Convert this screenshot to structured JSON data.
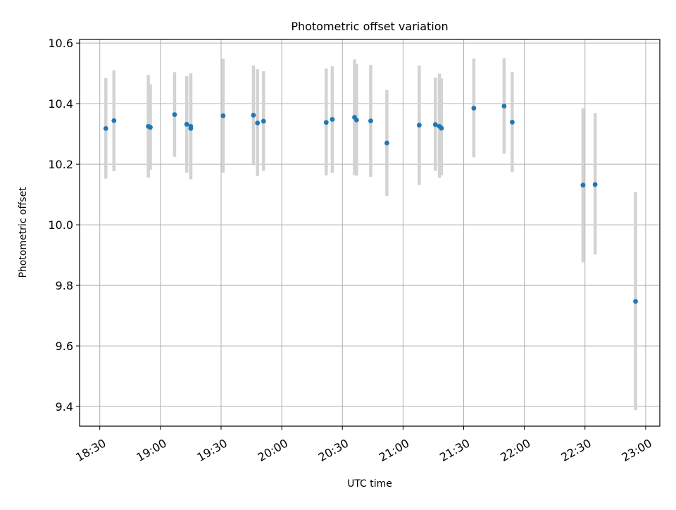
{
  "chart_data": {
    "type": "scatter",
    "title": "Photometric offset variation",
    "xlabel": "UTC time",
    "ylabel": "Photometric offset",
    "x_ticks": [
      "18:30",
      "19:00",
      "19:30",
      "20:00",
      "20:30",
      "21:00",
      "21:30",
      "22:00",
      "22:30",
      "23:00"
    ],
    "y_ticks": [
      "9.4",
      "9.6",
      "9.8",
      "10.0",
      "10.2",
      "10.4",
      "10.6"
    ],
    "xlim": [
      "18:20",
      "23:07"
    ],
    "ylim": [
      9.335,
      10.612
    ],
    "grid": true,
    "legend": "none",
    "colors": {
      "point": "#1f77b4",
      "errorbar": "#d3d3d3",
      "grid": "#b0b0b0"
    },
    "series": [
      {
        "points": [
          {
            "x": "18:33",
            "y": 10.318,
            "ylo": 10.152,
            "yhi": 10.484
          },
          {
            "x": "18:37",
            "y": 10.344,
            "ylo": 10.177,
            "yhi": 10.51
          },
          {
            "x": "18:54",
            "y": 10.325,
            "ylo": 10.156,
            "yhi": 10.495
          },
          {
            "x": "18:55",
            "y": 10.322,
            "ylo": 10.181,
            "yhi": 10.464
          },
          {
            "x": "19:07",
            "y": 10.364,
            "ylo": 10.224,
            "yhi": 10.504
          },
          {
            "x": "19:13",
            "y": 10.332,
            "ylo": 10.172,
            "yhi": 10.491
          },
          {
            "x": "19:15",
            "y": 10.325,
            "ylo": 10.153,
            "yhi": 10.5
          },
          {
            "x": "19:15",
            "y": 10.318,
            "ylo": 10.15,
            "yhi": 10.486
          },
          {
            "x": "19:31",
            "y": 10.36,
            "ylo": 10.172,
            "yhi": 10.548
          },
          {
            "x": "19:46",
            "y": 10.362,
            "ylo": 10.197,
            "yhi": 10.526
          },
          {
            "x": "19:48",
            "y": 10.336,
            "ylo": 10.161,
            "yhi": 10.514
          },
          {
            "x": "19:51",
            "y": 10.342,
            "ylo": 10.178,
            "yhi": 10.507
          },
          {
            "x": "20:22",
            "y": 10.338,
            "ylo": 10.163,
            "yhi": 10.516
          },
          {
            "x": "20:25",
            "y": 10.348,
            "ylo": 10.171,
            "yhi": 10.523
          },
          {
            "x": "20:36",
            "y": 10.355,
            "ylo": 10.164,
            "yhi": 10.546
          },
          {
            "x": "20:37",
            "y": 10.346,
            "ylo": 10.162,
            "yhi": 10.53
          },
          {
            "x": "20:44",
            "y": 10.343,
            "ylo": 10.158,
            "yhi": 10.528
          },
          {
            "x": "20:52",
            "y": 10.27,
            "ylo": 10.095,
            "yhi": 10.445
          },
          {
            "x": "21:08",
            "y": 10.329,
            "ylo": 10.131,
            "yhi": 10.526
          },
          {
            "x": "21:16",
            "y": 10.331,
            "ylo": 10.178,
            "yhi": 10.486
          },
          {
            "x": "21:18",
            "y": 10.325,
            "ylo": 10.155,
            "yhi": 10.499
          },
          {
            "x": "21:19",
            "y": 10.319,
            "ylo": 10.163,
            "yhi": 10.483
          },
          {
            "x": "21:35",
            "y": 10.385,
            "ylo": 10.223,
            "yhi": 10.549
          },
          {
            "x": "21:50",
            "y": 10.392,
            "ylo": 10.235,
            "yhi": 10.55
          },
          {
            "x": "21:54",
            "y": 10.339,
            "ylo": 10.174,
            "yhi": 10.504
          },
          {
            "x": "22:29",
            "y": 10.131,
            "ylo": 9.876,
            "yhi": 10.385
          },
          {
            "x": "22:35",
            "y": 10.133,
            "ylo": 9.902,
            "yhi": 10.369
          },
          {
            "x": "22:55",
            "y": 9.747,
            "ylo": 9.388,
            "yhi": 10.108
          }
        ]
      }
    ]
  }
}
